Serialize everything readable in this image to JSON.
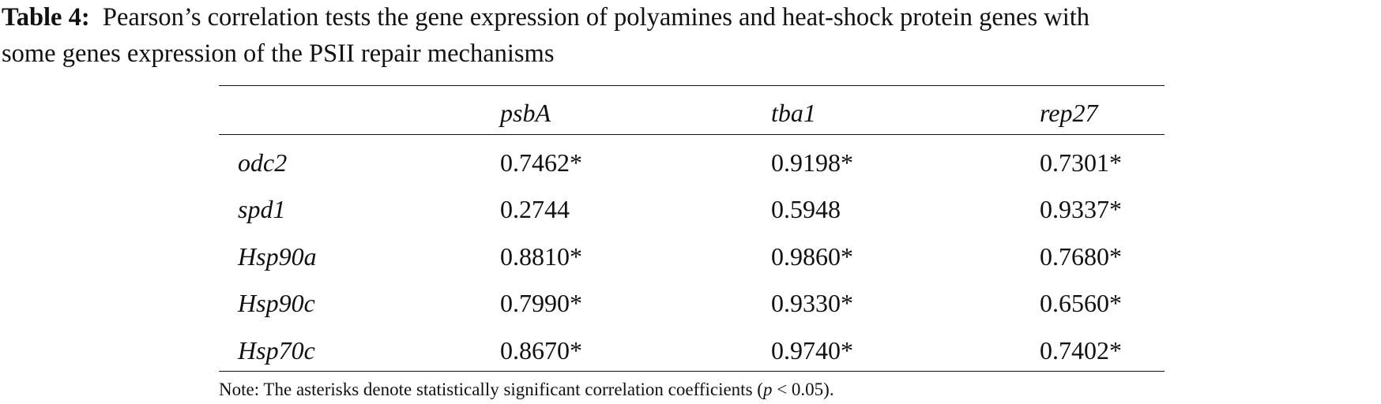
{
  "caption": {
    "label": "Table 4:",
    "text_line1": "Pearson’s correlation tests the gene expression of polyamines and heat-shock protein genes with",
    "text_line2": "some genes expression of the PSII repair mechanisms"
  },
  "table": {
    "columns": [
      "psbA",
      "tba1",
      "rep27"
    ],
    "rows": [
      [
        "odc2",
        "0.7462*",
        "0.9198*",
        "0.7301*"
      ],
      [
        "spd1",
        "0.2744",
        "0.5948",
        "0.9337*"
      ],
      [
        "Hsp90a",
        "0.8810*",
        "0.9860*",
        "0.7680*"
      ],
      [
        "Hsp90c",
        "0.7990*",
        "0.9330*",
        "0.6560*"
      ],
      [
        "Hsp70c",
        "0.8670*",
        "0.9740*",
        "0.7402*"
      ]
    ]
  },
  "note": {
    "before": "Note: The asterisks denote statistically significant correlation coefficients (",
    "symbol": "p",
    "after": " < 0.05)."
  }
}
